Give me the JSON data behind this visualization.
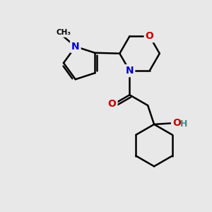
{
  "bg_color": "#e8e8e8",
  "atom_colors": {
    "C": "#000000",
    "N": "#0000cc",
    "O": "#cc0000",
    "H": "#448888"
  },
  "bond_color": "#000000",
  "bond_width": 1.8
}
